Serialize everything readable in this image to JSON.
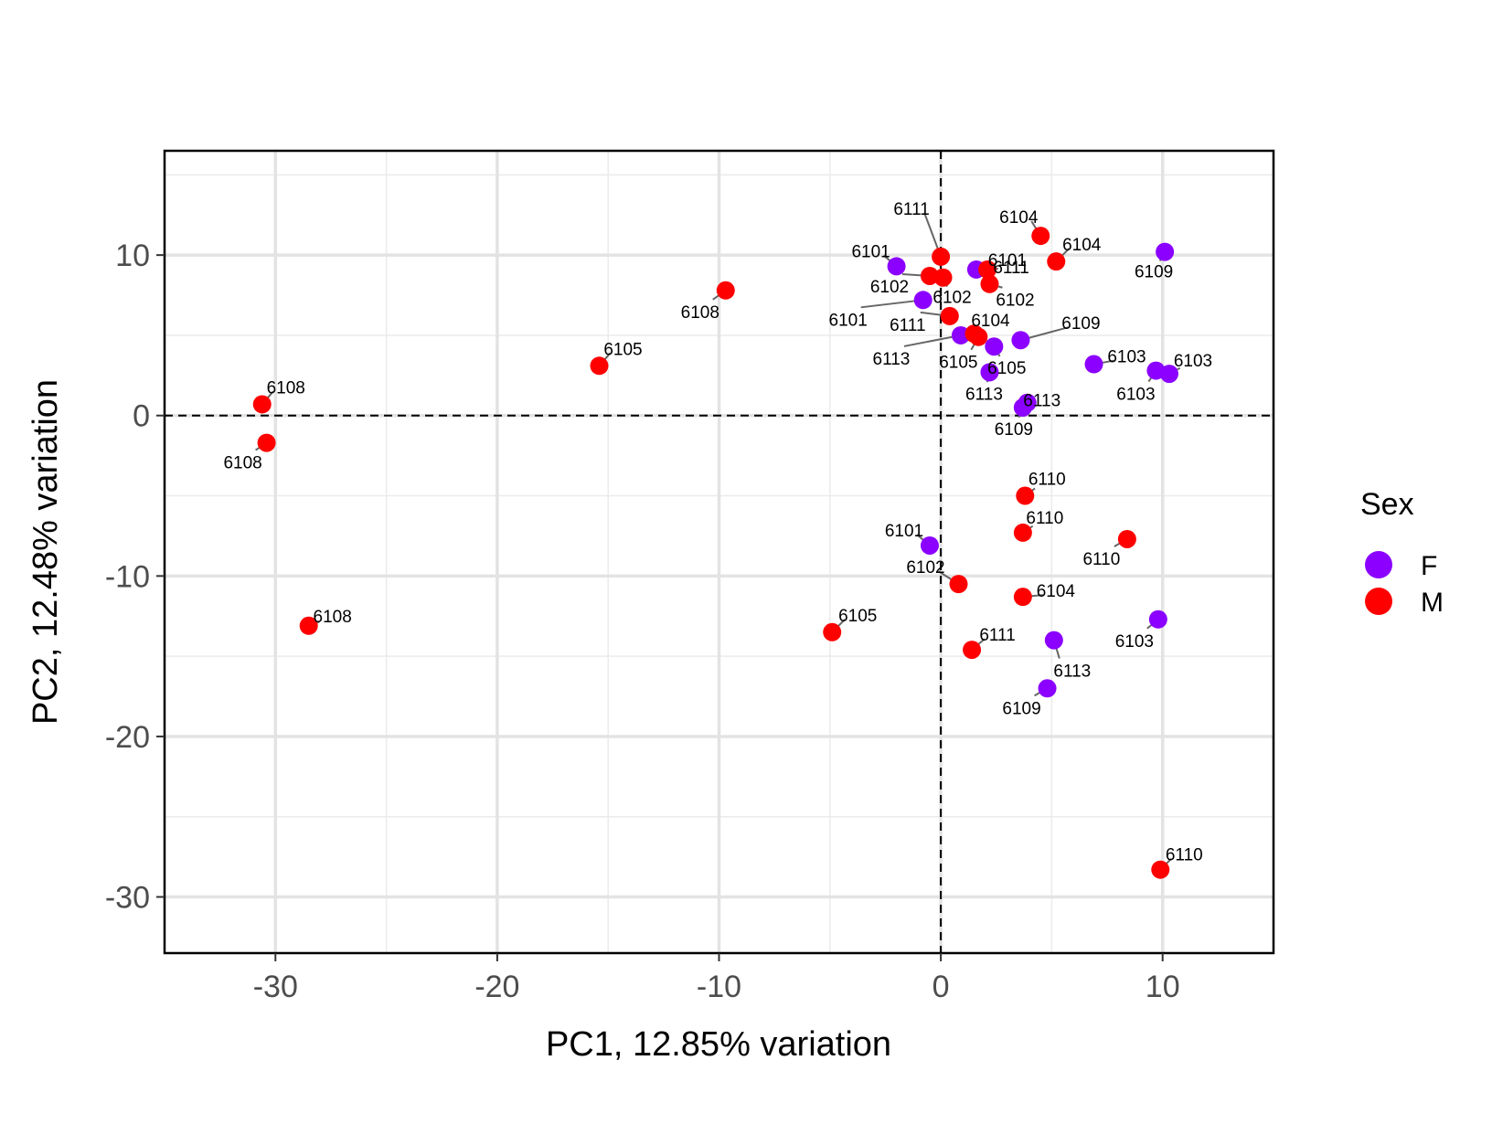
{
  "chart_data": {
    "type": "scatter",
    "xlabel": "PC1, 12.85% variation",
    "ylabel": "PC2, 12.48% variation",
    "xlim": [
      -35.0,
      15.0
    ],
    "ylim": [
      -33.5,
      16.5
    ],
    "x_ticks": [
      -30,
      -20,
      -10,
      0,
      10
    ],
    "y_ticks": [
      10,
      0,
      -10,
      -20,
      -30
    ],
    "x_tick_labels": [
      "-30",
      "-20",
      "-10",
      "0",
      "10"
    ],
    "y_tick_labels": [
      "10",
      "0",
      "-10",
      "-20",
      "-30"
    ],
    "reference_lines": {
      "x": 0,
      "y": 0,
      "style": "dashed"
    },
    "grid": true,
    "legend": {
      "title": "Sex",
      "position": "right",
      "entries": [
        {
          "label": "F",
          "color": "#8B00FF"
        },
        {
          "label": "M",
          "color": "#FF0000"
        }
      ]
    },
    "points": [
      {
        "x": -2.0,
        "y": 9.3,
        "sex": "F",
        "label": "6101"
      },
      {
        "x": 0.0,
        "y": 9.9,
        "sex": "M",
        "label": "6111"
      },
      {
        "x": 1.6,
        "y": 9.1,
        "sex": "F",
        "label": "6101"
      },
      {
        "x": 2.1,
        "y": 9.1,
        "sex": "M",
        "label": "6111"
      },
      {
        "x": 4.5,
        "y": 11.2,
        "sex": "M",
        "label": "6104"
      },
      {
        "x": 5.2,
        "y": 9.6,
        "sex": "M",
        "label": "6104"
      },
      {
        "x": 10.1,
        "y": 10.2,
        "sex": "F",
        "label": "6109"
      },
      {
        "x": -0.5,
        "y": 8.7,
        "sex": "M",
        "label": "6102"
      },
      {
        "x": 0.1,
        "y": 8.6,
        "sex": "M",
        "label": "6102"
      },
      {
        "x": 2.2,
        "y": 8.2,
        "sex": "M",
        "label": "6102"
      },
      {
        "x": -9.7,
        "y": 7.8,
        "sex": "M",
        "label": "6108"
      },
      {
        "x": -0.8,
        "y": 7.2,
        "sex": "F",
        "label": "6101"
      },
      {
        "x": 0.4,
        "y": 6.2,
        "sex": "M",
        "label": "6111"
      },
      {
        "x": 0.9,
        "y": 5.0,
        "sex": "F",
        "label": "6113"
      },
      {
        "x": 1.5,
        "y": 5.1,
        "sex": "M",
        "label": "6104"
      },
      {
        "x": 1.7,
        "y": 4.9,
        "sex": "M",
        "label": "6105"
      },
      {
        "x": 2.4,
        "y": 4.3,
        "sex": "F",
        "label": "6105"
      },
      {
        "x": 3.6,
        "y": 4.7,
        "sex": "F",
        "label": "6109"
      },
      {
        "x": 2.2,
        "y": 2.7,
        "sex": "F",
        "label": "6113"
      },
      {
        "x": 3.9,
        "y": 0.8,
        "sex": "F",
        "label": "6113"
      },
      {
        "x": 3.7,
        "y": 0.5,
        "sex": "F",
        "label": "6109"
      },
      {
        "x": 6.9,
        "y": 3.2,
        "sex": "F",
        "label": "6103"
      },
      {
        "x": 9.7,
        "y": 2.8,
        "sex": "F",
        "label": "6103"
      },
      {
        "x": 10.3,
        "y": 2.6,
        "sex": "F",
        "label": "6103"
      },
      {
        "x": -15.4,
        "y": 3.1,
        "sex": "M",
        "label": "6105"
      },
      {
        "x": -30.6,
        "y": 0.7,
        "sex": "M",
        "label": "6108"
      },
      {
        "x": -30.4,
        "y": -1.7,
        "sex": "M",
        "label": "6108"
      },
      {
        "x": 3.8,
        "y": -5.0,
        "sex": "M",
        "label": "6110"
      },
      {
        "x": 3.7,
        "y": -7.3,
        "sex": "M",
        "label": "6110"
      },
      {
        "x": 8.4,
        "y": -7.7,
        "sex": "M",
        "label": "6110"
      },
      {
        "x": -0.5,
        "y": -8.1,
        "sex": "F",
        "label": "6101"
      },
      {
        "x": 0.8,
        "y": -10.5,
        "sex": "M",
        "label": "6102"
      },
      {
        "x": 3.7,
        "y": -11.3,
        "sex": "M",
        "label": "6104"
      },
      {
        "x": 9.8,
        "y": -12.7,
        "sex": "F",
        "label": "6103"
      },
      {
        "x": -28.5,
        "y": -13.1,
        "sex": "M",
        "label": "6108"
      },
      {
        "x": -4.9,
        "y": -13.5,
        "sex": "M",
        "label": "6105"
      },
      {
        "x": 1.4,
        "y": -14.6,
        "sex": "M",
        "label": "6111"
      },
      {
        "x": 5.1,
        "y": -14.0,
        "sex": "F",
        "label": "6113"
      },
      {
        "x": 4.8,
        "y": -17.0,
        "sex": "F",
        "label": "6109"
      },
      {
        "x": 9.9,
        "y": -28.3,
        "sex": "M",
        "label": "6110"
      }
    ]
  }
}
